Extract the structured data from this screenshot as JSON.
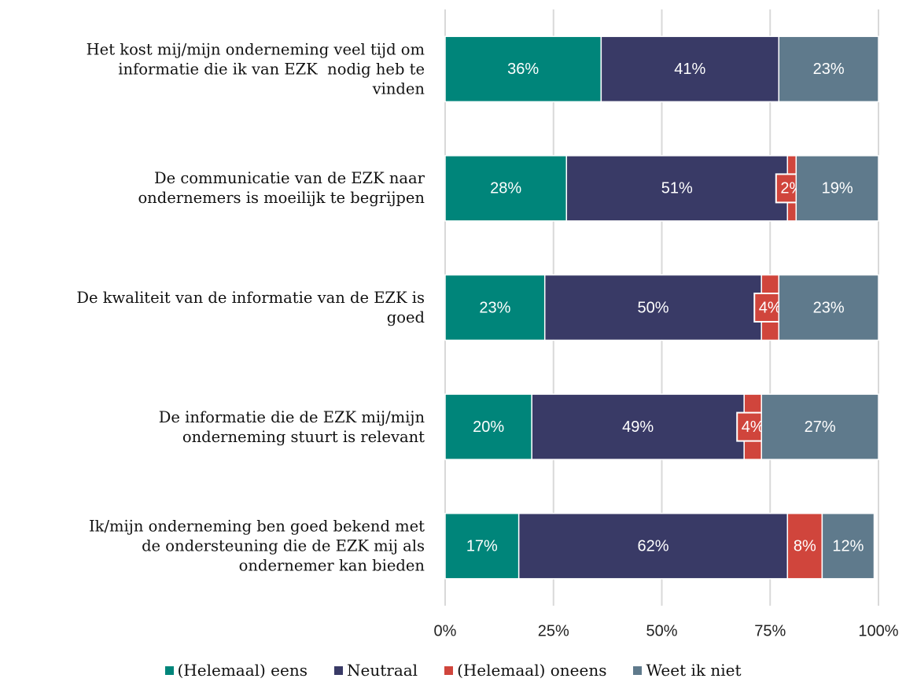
{
  "chart_data": {
    "type": "stacked-bar-horizontal",
    "categories": [
      "Het kost mij/mijn onderneming veel tijd om\ninformatie die ik van EZK  nodig heb te\nvinden",
      "De communicatie van de EZK naar\nondernemers is moeilijk te begrijpen",
      "De kwaliteit van de informatie van de EZK is\ngoed",
      "De informatie die de EZK mij/mijn\nonderneming stuurt is relevant",
      "Ik/mijn onderneming ben goed bekend met\nde ondersteuning die de EZK mij als\nondernemer kan bieden"
    ],
    "series": [
      {
        "name": "(Helemaal) eens",
        "color": "#00857a",
        "values": [
          36,
          28,
          23,
          20,
          17
        ],
        "value_labels": [
          "36%",
          "28%",
          "23%",
          "20%",
          "17%"
        ]
      },
      {
        "name": "Neutraal",
        "color": "#393a66",
        "values": [
          41,
          51,
          50,
          49,
          62
        ],
        "value_labels": [
          "41%",
          "51%",
          "50%",
          "49%",
          "62%"
        ]
      },
      {
        "name": "(Helemaal) oneens",
        "color": "#d0453c",
        "values": [
          null,
          2,
          4,
          4,
          8
        ],
        "value_labels": [
          null,
          "2%",
          "4%",
          "4%",
          "8%"
        ]
      },
      {
        "name": "Weet ik niet",
        "color": "#5f7a8c",
        "values": [
          23,
          19,
          23,
          27,
          12
        ],
        "value_labels": [
          "23%",
          "19%",
          "23%",
          "27%",
          "12%"
        ]
      }
    ],
    "xlim": [
      0,
      100
    ],
    "xticks": [
      {
        "value": 0,
        "label": "0%"
      },
      {
        "value": 25,
        "label": "25%"
      },
      {
        "value": 50,
        "label": "50%"
      },
      {
        "value": 75,
        "label": "75%"
      },
      {
        "value": 100,
        "label": "100%"
      }
    ],
    "grid": true,
    "legend": "bottom"
  }
}
